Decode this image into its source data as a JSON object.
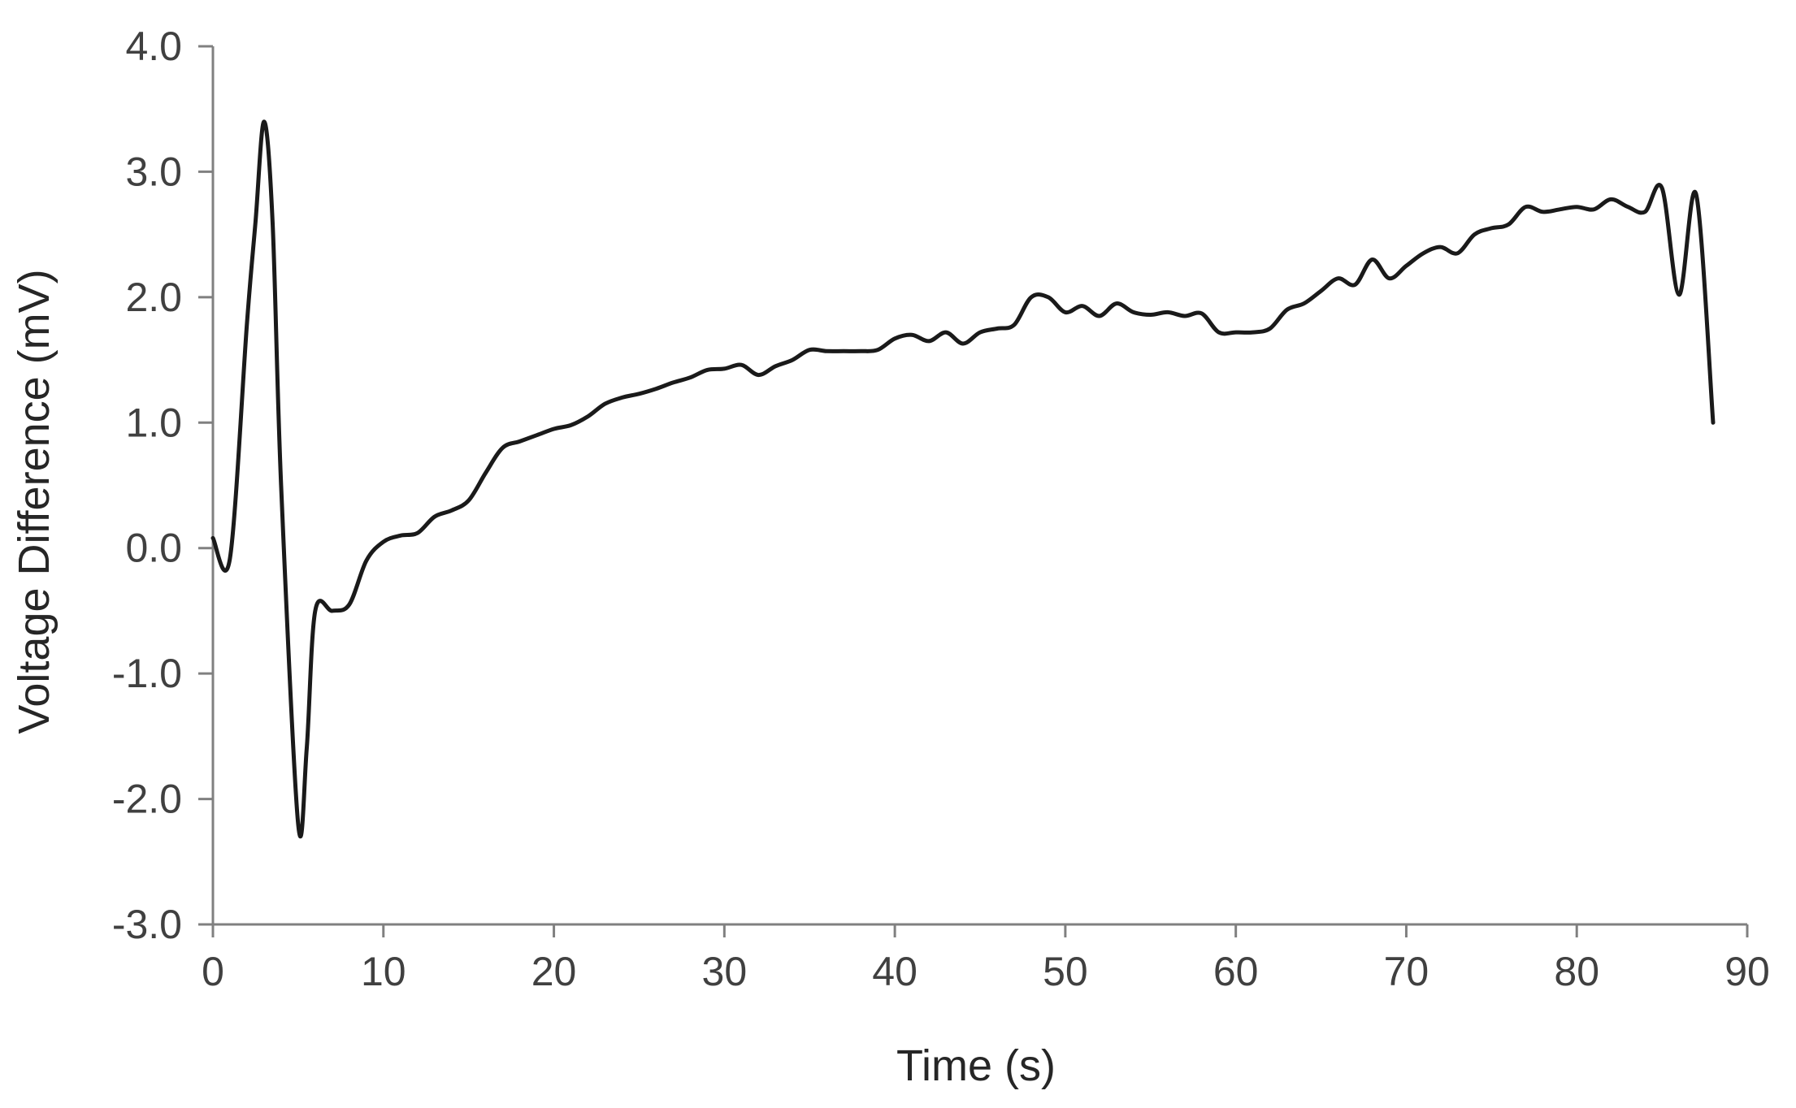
{
  "chart_data": {
    "type": "line",
    "title": "",
    "xlabel": "Time (s)",
    "ylabel": "Voltage Difference (mV)",
    "xlim": [
      0,
      90
    ],
    "ylim": [
      -3.0,
      4.0
    ],
    "x_ticks": [
      "0",
      "10",
      "20",
      "30",
      "40",
      "50",
      "60",
      "70",
      "80",
      "90"
    ],
    "y_ticks": [
      "4.0",
      "3.0",
      "2.0",
      "1.0",
      "0.0",
      "-1.0",
      "-2.0",
      "-3.0"
    ],
    "grid": false,
    "legend": "none",
    "line_color": "#1a1a1a",
    "axis_color": "#808080",
    "series": [
      {
        "x": [
          0,
          1,
          2,
          2.5,
          3,
          3.5,
          4,
          5,
          5.5,
          6,
          7,
          8,
          9,
          10,
          11,
          12,
          13,
          14,
          15,
          16,
          17,
          18,
          19,
          20,
          21,
          22,
          23,
          24,
          25,
          26,
          27,
          28,
          29,
          30,
          31,
          32,
          33,
          34,
          35,
          36,
          37,
          38,
          39,
          40,
          41,
          42,
          43,
          44,
          45,
          46,
          47,
          48,
          49,
          50,
          51,
          52,
          53,
          54,
          55,
          56,
          57,
          58,
          59,
          60,
          61,
          62,
          63,
          64,
          65,
          66,
          67,
          68,
          69,
          70,
          71,
          72,
          73,
          74,
          75,
          76,
          77,
          78,
          79,
          80,
          81,
          82,
          83,
          84,
          85,
          86,
          87,
          88
        ],
        "y": [
          0.08,
          -0.08,
          1.8,
          2.6,
          3.4,
          2.6,
          0.5,
          -2.2,
          -1.6,
          -0.5,
          -0.5,
          -0.45,
          -0.1,
          0.05,
          0.1,
          0.12,
          0.25,
          0.3,
          0.38,
          0.6,
          0.8,
          0.85,
          0.9,
          0.95,
          0.98,
          1.05,
          1.15,
          1.2,
          1.23,
          1.27,
          1.32,
          1.36,
          1.42,
          1.43,
          1.46,
          1.38,
          1.45,
          1.5,
          1.58,
          1.57,
          1.57,
          1.57,
          1.58,
          1.67,
          1.7,
          1.65,
          1.72,
          1.63,
          1.72,
          1.75,
          1.78,
          2.0,
          2.0,
          1.88,
          1.93,
          1.85,
          1.95,
          1.88,
          1.86,
          1.88,
          1.85,
          1.87,
          1.72,
          1.72,
          1.72,
          1.75,
          1.9,
          1.95,
          2.05,
          2.15,
          2.1,
          2.3,
          2.15,
          2.25,
          2.35,
          2.4,
          2.35,
          2.5,
          2.55,
          2.58,
          2.72,
          2.68,
          2.7,
          2.72,
          2.7,
          2.78,
          2.72,
          2.68,
          2.87,
          2.02,
          2.82,
          1.0
        ]
      }
    ]
  }
}
